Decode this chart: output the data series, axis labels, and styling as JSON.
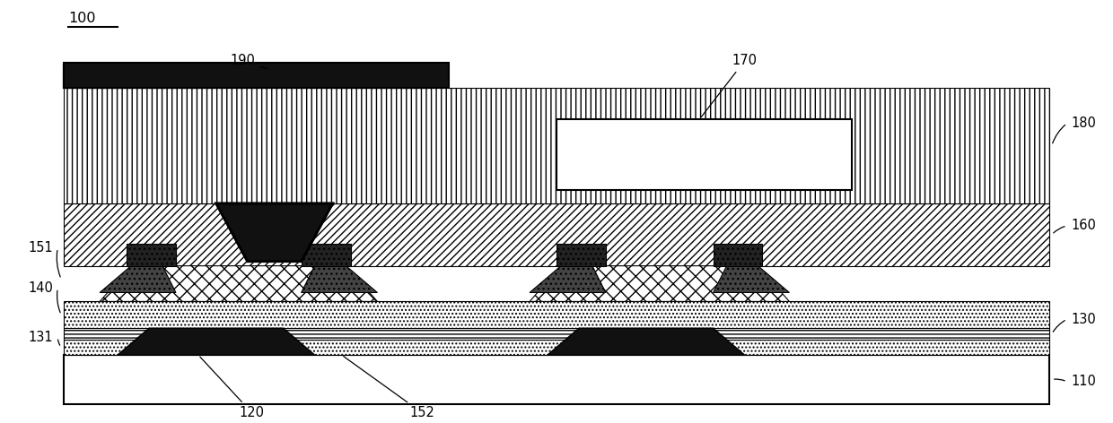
{
  "bg_color": "#ffffff",
  "fig_width": 12.4,
  "fig_height": 4.72,
  "black": "#000000",
  "dark": "#111111",
  "mid_gray": "#555555",
  "light_gray": "#aaaaaa"
}
